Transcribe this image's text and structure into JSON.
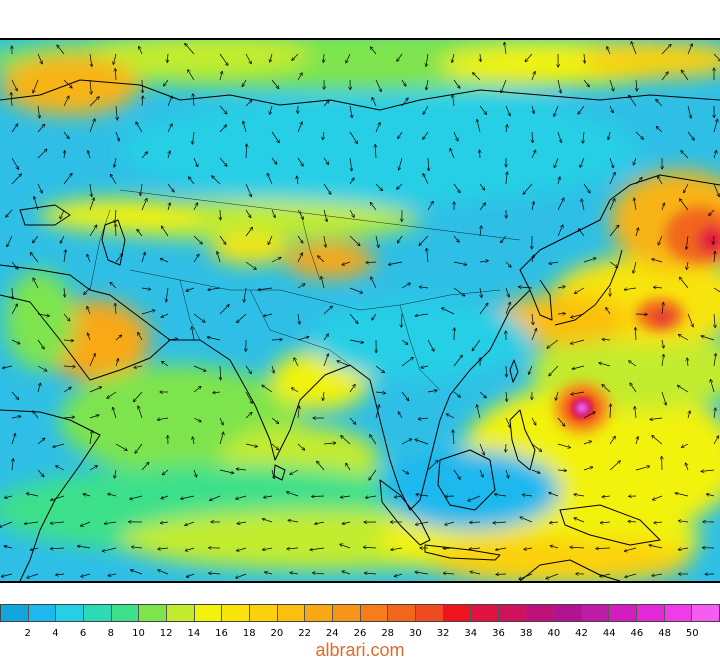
{
  "map": {
    "field": "wind speed with direction arrows",
    "region": "Asia, Indian Ocean and western Pacific",
    "features": [
      "tropical cyclone east of the Philippines",
      "strong winds near Kamchatka",
      "strong winds south of Japan"
    ]
  },
  "legend": {
    "ticks": [
      "2",
      "4",
      "6",
      "8",
      "10",
      "12",
      "14",
      "16",
      "18",
      "20",
      "22",
      "24",
      "26",
      "28",
      "30",
      "32",
      "34",
      "36",
      "38",
      "40",
      "42",
      "44",
      "46",
      "48",
      "50"
    ],
    "colors": [
      "#12a6e0",
      "#1fb8ee",
      "#25cfe6",
      "#2ed9b8",
      "#3ee08a",
      "#7ee44e",
      "#c2ec2e",
      "#f2f20a",
      "#f8e40a",
      "#fbd10c",
      "#fbbf10",
      "#f9a814",
      "#f79418",
      "#f57e1a",
      "#f2661c",
      "#ee4c1e",
      "#f0141e",
      "#e0123e",
      "#d0125c",
      "#be1278",
      "#b01490",
      "#c01aa8",
      "#d21ec0",
      "#e428d8",
      "#ee3ce8",
      "#f45ef0"
    ]
  },
  "watermark": "albrari.com"
}
